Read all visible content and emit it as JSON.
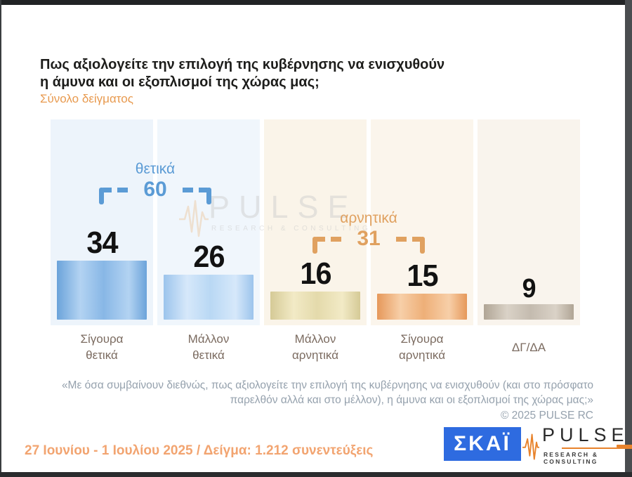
{
  "header": {
    "title_lines": [
      "Πως αξιολογείτε την επιλογή της κυβέρνησης να ενισχυθούν",
      "η άμυνα και οι εξοπλισμοί της χώρας μας;"
    ],
    "subtitle": "Σύνολο δείγματος"
  },
  "watermark": {
    "brand": "PULSE",
    "tagline": "RESEARCH & CONSULTING"
  },
  "chart_data": {
    "type": "bar",
    "title": "Πως αξιολογείτε την επιλογή της κυβέρνησης να ενισχυθούν η άμυνα και οι εξοπλισμοί της χώρας μας;",
    "subtitle": "Σύνολο δείγματος",
    "categories": [
      "Σίγουρα θετικά",
      "Μάλλον θετικά",
      "Μάλλον αρνητικά",
      "Σίγουρα αρνητικά",
      "ΔΓ/ΔΑ"
    ],
    "category_lines": [
      [
        "Σίγουρα",
        "θετικά"
      ],
      [
        "Μάλλον",
        "θετικά"
      ],
      [
        "Μάλλον",
        "αρνητικά"
      ],
      [
        "Σίγουρα",
        "αρνητικά"
      ],
      [
        "ΔΓ/ΔΑ"
      ]
    ],
    "values": [
      34,
      26,
      16,
      15,
      9
    ],
    "groups": [
      {
        "label": "θετικά",
        "value": 60,
        "from": 0,
        "to": 1,
        "color": "#5b9bd5"
      },
      {
        "label": "αρνητικά",
        "value": 31,
        "from": 2,
        "to": 3,
        "color": "#e0a160"
      }
    ],
    "bar_colors": [
      [
        "#6ba3da",
        "#b3d3f2",
        "#88b7e6"
      ],
      [
        "#9cc4ec",
        "#d6e8fa",
        "#b9d8f4"
      ],
      [
        "#d5ca96",
        "#f2eac6",
        "#e4daab"
      ],
      [
        "#e6985a",
        "#f7cfa8",
        "#eeaf78"
      ],
      [
        "#b0a595",
        "#dad2c7",
        "#c4bbaf"
      ]
    ],
    "panel_colors": [
      "#edf4fb",
      "#f0f6fc",
      "#faf4e9",
      "#fbf5ec",
      "#f9f4ed"
    ],
    "xlabel": "",
    "ylabel": "",
    "grid": false,
    "legend": false
  },
  "footnote": {
    "lines": [
      "«Με όσα συμβαίνουν διεθνώς, πως αξιολογείτε την επιλογή της κυβέρνησης να ενισχυθούν (και στο πρόσφατο",
      "παρελθόν αλλά και στο μέλλον), η άμυνα και οι εξοπλισμοί της χώρας μας;»"
    ],
    "copyright": "© 2025  PULSE RC"
  },
  "footer": {
    "survey_info": "27 Ιουνίου - 1 Ιουλίου 2025  /  Δείγμα:  1.212 συνεντεύξεις",
    "skai_logo": "ΣΚΑΪ",
    "pulse_logo": {
      "brand": "PULSE",
      "tagline": "RESEARCH & CONSULTING"
    }
  }
}
